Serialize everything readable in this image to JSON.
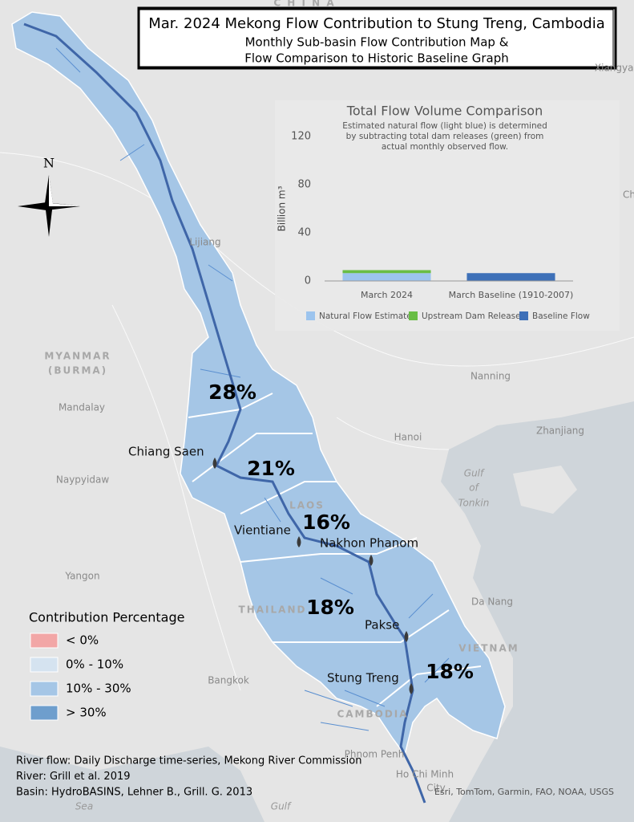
{
  "title": [
    "Mar. 2024 Mekong Flow Contribution to Stung Treng, Cambodia",
    "Monthly Sub-basin Flow Contribution Map &",
    "Flow Comparison to Historic Baseline Graph"
  ],
  "chart_data": {
    "type": "bar",
    "title": "Total Flow Volume Comparison",
    "subtitle": [
      "Estimated natural flow (light blue) is determined",
      "by subtracting total dam releases (green) from",
      "actual monthly observed flow."
    ],
    "y_label": "Billion m³",
    "categories": [
      "March 2024",
      "March Baseline (1910-2007)"
    ],
    "series": [
      {
        "name": "Natural Flow Estimate",
        "color": "#9cc4ee",
        "values": [
          6.5,
          null
        ]
      },
      {
        "name": "Upstream Dam Releases",
        "color": "#69bd45",
        "values": [
          2.5,
          null
        ]
      },
      {
        "name": "Baseline Flow",
        "color": "#3e70b8",
        "values": [
          null,
          6.5
        ]
      }
    ],
    "ylim": [
      0,
      120
    ],
    "yticks": [
      0,
      40,
      80,
      120
    ],
    "stacked": true
  },
  "legend": {
    "title": "Contribution Percentage",
    "items": [
      {
        "label": "< 0%",
        "color": "#f2a6a6"
      },
      {
        "label": "0% - 10%",
        "color": "#d5e3f0"
      },
      {
        "label": "10% - 30%",
        "color": "#a5c6e6"
      },
      {
        "label": "> 30%",
        "color": "#6e9ecd"
      }
    ]
  },
  "sub_basins": [
    "28%",
    "21%",
    "16%",
    "18%",
    "18%"
  ],
  "stations": [
    "Chiang Saen",
    "Vientiane",
    "Nakhon Phanom",
    "Pakse",
    "Stung Treng"
  ],
  "places": [
    "C H I N A",
    "Xiangyan",
    "Ch",
    "Lijiang",
    "MYANMAR",
    "(BURMA)",
    "Mandalay",
    "Naypyidaw",
    "Yangon",
    "Nanning",
    "Hanoi",
    "Zhanjiang",
    "Gulf",
    "of",
    "Tonkin",
    "Da Nang",
    "LAOS",
    "THAILAND",
    "VIETNAM",
    "CAMBODIA",
    "Bangkok",
    "Phnom Penh",
    "Ho Chi Minh",
    "City",
    "Sea",
    "Gulf"
  ],
  "north": "N",
  "credits": [
    "River flow: Daily Discharge time-series, Mekong River Commission",
    "River: Grill et al. 2019",
    "Basin: HydroBASINS, Lehner B., Grill. G. 2013"
  ],
  "attribution": "Esri, TomTom, Garmin, FAO, NOAA, USGS"
}
